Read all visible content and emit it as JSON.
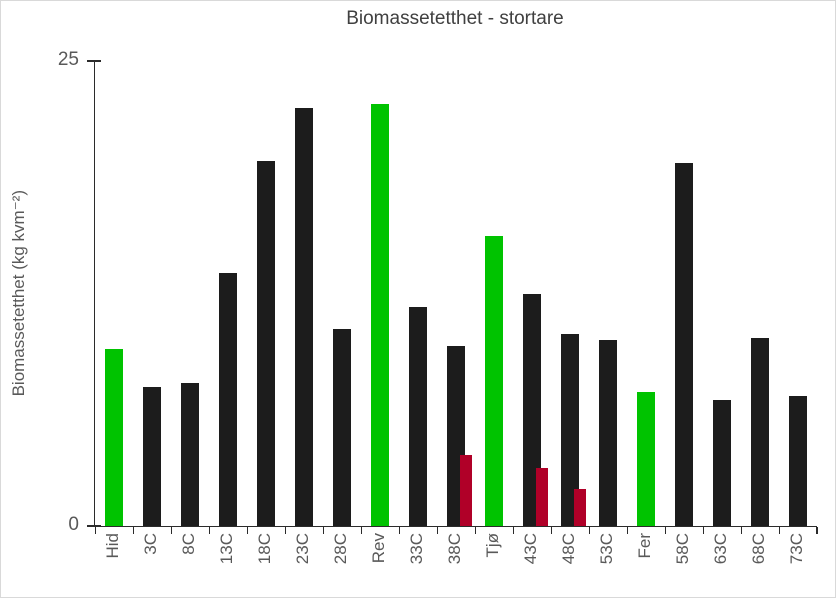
{
  "window": {
    "background": "#ffffff",
    "border_color": "#d9d9d9"
  },
  "colors": {
    "black": "#1c1c1c",
    "green": "#00c300",
    "red": "#b00028",
    "axis": "#2b2b2b",
    "tick_text": "#595959",
    "title_text": "#404040"
  },
  "chart_data": {
    "type": "bar",
    "title": "Biomassetetthet - stortare",
    "xlabel": "",
    "ylabel": "Biomassetetthet (kg kvm⁻²)",
    "ylim": [
      0,
      25
    ],
    "yticks": [
      0,
      25
    ],
    "grid": false,
    "legend": "none",
    "categories": [
      "Hid",
      "3C",
      "8C",
      "13C",
      "18C",
      "23C",
      "28C",
      "Rev",
      "33C",
      "38C",
      "Tjø",
      "43C",
      "48C",
      "53C",
      "Fer",
      "58C",
      "63C",
      "68C",
      "73C"
    ],
    "series": [
      {
        "name": "main",
        "values": [
          9.5,
          7.5,
          7.7,
          13.6,
          19.6,
          22.5,
          10.6,
          22.7,
          11.8,
          9.7,
          15.6,
          12.5,
          10.3,
          10.0,
          7.2,
          19.5,
          6.8,
          10.1,
          7.0
        ],
        "color_keys": [
          "green",
          "black",
          "black",
          "black",
          "black",
          "black",
          "black",
          "green",
          "black",
          "black",
          "green",
          "black",
          "black",
          "black",
          "green",
          "black",
          "black",
          "black",
          "black"
        ]
      },
      {
        "name": "overlay",
        "values": [
          null,
          null,
          null,
          null,
          null,
          null,
          null,
          null,
          null,
          3.8,
          null,
          3.1,
          2.0,
          null,
          null,
          null,
          null,
          null,
          null
        ],
        "color_keys": [
          "red",
          "red",
          "red",
          "red",
          "red",
          "red",
          "red",
          "red",
          "red",
          "red",
          "red",
          "red",
          "red",
          "red",
          "red",
          "red",
          "red",
          "red",
          "red"
        ]
      }
    ]
  }
}
